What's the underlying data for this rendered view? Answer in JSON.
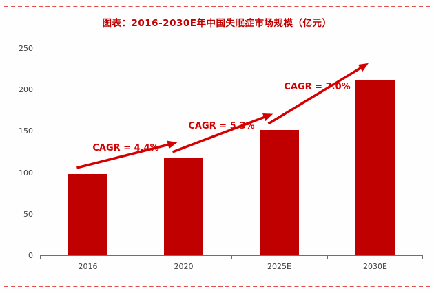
{
  "page": {
    "title": "图表：2016-2030E年中国失眠症市场规模（亿元）"
  },
  "chart_data": {
    "type": "bar",
    "title": "图表：2016-2030E年中国失眠症市场规模（亿元）",
    "categories": [
      "2016",
      "2020",
      "2025E",
      "2030E"
    ],
    "values": [
      98,
      117,
      151,
      212
    ],
    "unit": "亿元",
    "xlabel": "",
    "ylabel": "",
    "ylim": [
      0,
      250
    ],
    "yticks": [
      0,
      50,
      100,
      150,
      200,
      250
    ],
    "grid": false,
    "legend": "none",
    "annotations": [
      {
        "label": "CAGR = 4.4%",
        "from": "2016",
        "to": "2020"
      },
      {
        "label": "CAGR = 5.3%",
        "from": "2020",
        "to": "2025E"
      },
      {
        "label": "CAGR = 7.0%",
        "from": "2025E",
        "to": "2030E"
      }
    ],
    "colors": {
      "bar": "#c00000",
      "arrow": "#d40000",
      "annotation_text": "#d40000",
      "title": "#c00000",
      "border": "#e05050",
      "axis_text": "#404040"
    }
  }
}
